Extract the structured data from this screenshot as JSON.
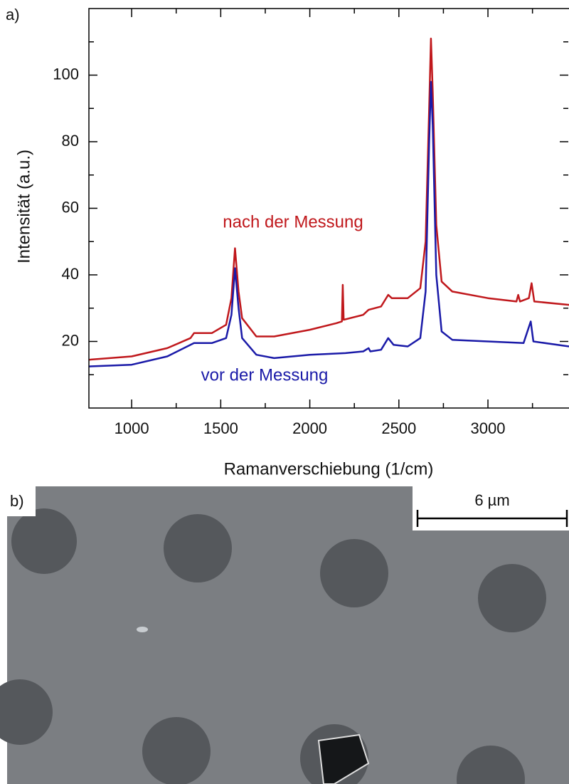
{
  "chart_data": {
    "type": "line",
    "panel_label": "a)",
    "x_label": "Ramanverschiebung (1/cm)",
    "y_label": "Intensität (a.u.)",
    "xlim": [
      760,
      3455
    ],
    "ylim": [
      0,
      120
    ],
    "xticks": [
      1000,
      1500,
      2000,
      2500,
      3000
    ],
    "xminorticks": [
      1250,
      1750,
      2250,
      2750,
      3250
    ],
    "yticks": [
      20,
      40,
      60,
      80,
      100
    ],
    "yminorticks": [
      10,
      30,
      50,
      70,
      90,
      110
    ],
    "series": [
      {
        "name": "nach der Messung",
        "color": "#c0181c",
        "x": [
          760,
          1000,
          1200,
          1330,
          1350,
          1450,
          1530,
          1560,
          1580,
          1600,
          1620,
          1700,
          1800,
          2000,
          2150,
          2180,
          2185,
          2190,
          2300,
          2330,
          2400,
          2440,
          2460,
          2550,
          2620,
          2650,
          2670,
          2680,
          2690,
          2710,
          2740,
          2800,
          3000,
          3160,
          3170,
          3180,
          3230,
          3245,
          3260,
          3455
        ],
        "values": [
          14.5,
          15.5,
          18,
          21,
          22.5,
          22.5,
          25,
          33,
          48,
          35,
          27,
          21.5,
          21.5,
          23.5,
          25.5,
          26,
          37,
          26.5,
          28,
          29.5,
          30.5,
          34,
          33,
          33,
          36,
          50,
          90,
          111,
          95,
          55,
          38,
          35,
          33,
          32,
          34,
          32,
          33,
          37.5,
          32,
          31
        ]
      },
      {
        "name": "vor der Messung",
        "color": "#1a1aa8",
        "x": [
          760,
          1000,
          1200,
          1330,
          1350,
          1450,
          1530,
          1560,
          1580,
          1600,
          1620,
          1700,
          1800,
          2000,
          2200,
          2300,
          2330,
          2340,
          2400,
          2440,
          2470,
          2550,
          2620,
          2650,
          2670,
          2680,
          2690,
          2710,
          2740,
          2800,
          3000,
          3200,
          3240,
          3255,
          3455
        ],
        "values": [
          12.5,
          13,
          15.5,
          19,
          19.5,
          19.5,
          21,
          28,
          42,
          30,
          21,
          16,
          15,
          16,
          16.5,
          17,
          18,
          17,
          17.5,
          21,
          19,
          18.5,
          21,
          35,
          80,
          98,
          85,
          40,
          23,
          20.5,
          20,
          19.5,
          26,
          20,
          18.5
        ]
      }
    ]
  },
  "image": {
    "panel_label": "b)",
    "scale_bar": "6 µm"
  }
}
